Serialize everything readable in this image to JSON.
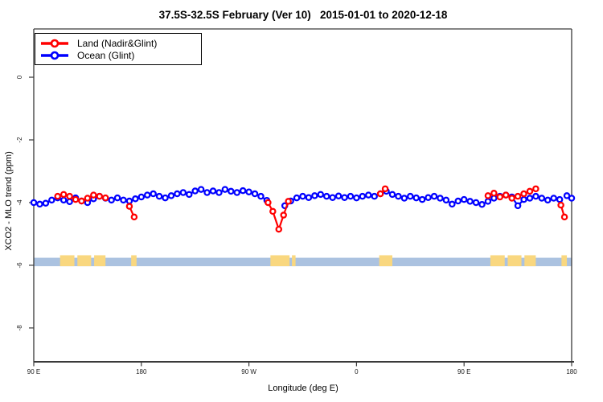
{
  "window": {
    "kind": "R-style scientific plot"
  },
  "chart_data": {
    "type": "line",
    "title": "37.5S-32.5S February (Ver 10)   2015-01-01 to 2020-12-18",
    "xlabel": "Longitude (deg E)",
    "ylabel": "XCO2 - MLO trend (ppm)",
    "grid": false,
    "legend_position": "top-left",
    "x_axis": {
      "range": [
        90,
        540
      ],
      "wraps_globe": "90E eastward to 180, 90W, 0, 90E, 180",
      "ticks": [
        90,
        180,
        270,
        360,
        450,
        540
      ],
      "tick_labels": [
        "90 E",
        "180",
        "90 W",
        "0",
        "90 E",
        "180"
      ]
    },
    "y_axis": {
      "range": [
        1.54,
        -9.08
      ],
      "ticks": [
        0,
        -2,
        -4,
        -6,
        -8
      ],
      "tick_labels": [
        "0",
        "-2",
        "-4",
        "-6",
        "-8"
      ]
    },
    "series": [
      {
        "name": "Ocean (Glint)",
        "color": "#0000ff",
        "marker": "open-circle",
        "segments": [
          [
            [
              90,
              -4.0
            ],
            [
              95,
              -4.05
            ],
            [
              100,
              -4.02
            ],
            [
              105,
              -3.92
            ],
            [
              110,
              -3.85
            ],
            [
              115,
              -3.92
            ],
            [
              120,
              -3.97
            ],
            [
              125,
              -3.85
            ],
            [
              130,
              -3.95
            ],
            [
              135,
              -4.0
            ],
            [
              140,
              -3.88
            ],
            [
              145,
              -3.8
            ],
            [
              150,
              -3.86
            ],
            [
              155,
              -3.92
            ],
            [
              160,
              -3.85
            ],
            [
              165,
              -3.92
            ],
            [
              170,
              -3.95
            ],
            [
              175,
              -3.88
            ],
            [
              180,
              -3.82
            ],
            [
              185,
              -3.76
            ],
            [
              190,
              -3.72
            ],
            [
              195,
              -3.8
            ],
            [
              200,
              -3.85
            ],
            [
              205,
              -3.78
            ],
            [
              210,
              -3.72
            ],
            [
              215,
              -3.68
            ],
            [
              220,
              -3.74
            ],
            [
              225,
              -3.63
            ],
            [
              230,
              -3.58
            ],
            [
              235,
              -3.68
            ],
            [
              240,
              -3.63
            ],
            [
              245,
              -3.68
            ],
            [
              250,
              -3.58
            ],
            [
              255,
              -3.64
            ],
            [
              260,
              -3.68
            ],
            [
              265,
              -3.62
            ],
            [
              270,
              -3.66
            ],
            [
              275,
              -3.72
            ],
            [
              280,
              -3.8
            ],
            [
              285,
              -3.93
            ]
          ],
          [
            [
              300,
              -4.1
            ],
            [
              305,
              -3.95
            ],
            [
              310,
              -3.85
            ],
            [
              315,
              -3.8
            ],
            [
              320,
              -3.84
            ],
            [
              325,
              -3.78
            ],
            [
              330,
              -3.74
            ],
            [
              335,
              -3.8
            ],
            [
              340,
              -3.84
            ],
            [
              345,
              -3.79
            ],
            [
              350,
              -3.84
            ],
            [
              355,
              -3.8
            ],
            [
              360,
              -3.85
            ],
            [
              365,
              -3.8
            ],
            [
              370,
              -3.76
            ],
            [
              375,
              -3.8
            ],
            [
              380,
              -3.72
            ],
            [
              385,
              -3.64
            ],
            [
              390,
              -3.74
            ],
            [
              395,
              -3.8
            ],
            [
              400,
              -3.86
            ],
            [
              405,
              -3.8
            ],
            [
              410,
              -3.85
            ],
            [
              415,
              -3.9
            ],
            [
              420,
              -3.84
            ],
            [
              425,
              -3.8
            ],
            [
              430,
              -3.86
            ],
            [
              435,
              -3.92
            ],
            [
              440,
              -4.05
            ],
            [
              445,
              -3.95
            ],
            [
              450,
              -3.9
            ],
            [
              455,
              -3.96
            ],
            [
              460,
              -4.0
            ],
            [
              465,
              -4.06
            ],
            [
              470,
              -3.96
            ],
            [
              475,
              -3.86
            ],
            [
              480,
              -3.8
            ],
            [
              485,
              -3.76
            ],
            [
              490,
              -3.82
            ],
            [
              495,
              -4.1
            ],
            [
              500,
              -3.9
            ],
            [
              505,
              -3.86
            ],
            [
              510,
              -3.8
            ],
            [
              515,
              -3.86
            ],
            [
              520,
              -3.92
            ],
            [
              525,
              -3.86
            ],
            [
              530,
              -3.9
            ]
          ],
          [
            [
              536,
              -3.78
            ],
            [
              540,
              -3.86
            ]
          ]
        ]
      },
      {
        "name": "Land (Nadir&Glint)",
        "color": "#ff0000",
        "marker": "open-circle",
        "segments": [
          [
            [
              110,
              -3.8
            ],
            [
              115,
              -3.74
            ],
            [
              120,
              -3.8
            ],
            [
              125,
              -3.9
            ],
            [
              130,
              -3.95
            ],
            [
              135,
              -3.86
            ],
            [
              140,
              -3.76
            ],
            [
              145,
              -3.8
            ],
            [
              150,
              -3.85
            ]
          ],
          [
            [
              170,
              -4.12
            ],
            [
              174,
              -4.46
            ]
          ],
          [
            [
              286,
              -4.0
            ],
            [
              290,
              -4.28
            ],
            [
              295,
              -4.85
            ],
            [
              299,
              -4.4
            ],
            [
              303,
              -3.96
            ]
          ],
          [
            [
              380,
              -3.72
            ],
            [
              384,
              -3.56
            ]
          ],
          [
            [
              470,
              -3.78
            ],
            [
              475,
              -3.7
            ],
            [
              480,
              -3.82
            ],
            [
              485,
              -3.76
            ],
            [
              490,
              -3.86
            ],
            [
              495,
              -3.8
            ],
            [
              500,
              -3.72
            ],
            [
              505,
              -3.64
            ],
            [
              510,
              -3.56
            ]
          ],
          [
            [
              531,
              -4.08
            ],
            [
              534,
              -4.46
            ]
          ]
        ]
      }
    ],
    "surface_strip": {
      "description": "land/ocean map band along longitude",
      "ocean_color": "#abc2e0",
      "land_color": "#f9d77f",
      "value_top": -5.76,
      "value_bottom": -6.03,
      "land_bump_top": -5.68,
      "land_segments": [
        [
          112,
          124
        ],
        [
          126.5,
          138
        ],
        [
          140.5,
          150
        ],
        [
          171.5,
          176
        ],
        [
          288,
          304
        ],
        [
          306,
          309
        ],
        [
          379,
          390
        ],
        [
          472,
          484
        ],
        [
          486.5,
          498
        ],
        [
          500.5,
          510
        ],
        [
          531.5,
          536
        ]
      ]
    }
  },
  "legend": {
    "items": [
      {
        "label": "Land (Nadir&Glint)",
        "color": "#ff0000"
      },
      {
        "label": "Ocean (Glint)",
        "color": "#0000ff"
      }
    ]
  },
  "colors": {
    "land_series": "#ff0000",
    "ocean_series": "#0000ff",
    "strip_ocean": "#abc2e0",
    "strip_land": "#f9d77f",
    "axis": "#3a3a3a",
    "text": "#000000"
  }
}
